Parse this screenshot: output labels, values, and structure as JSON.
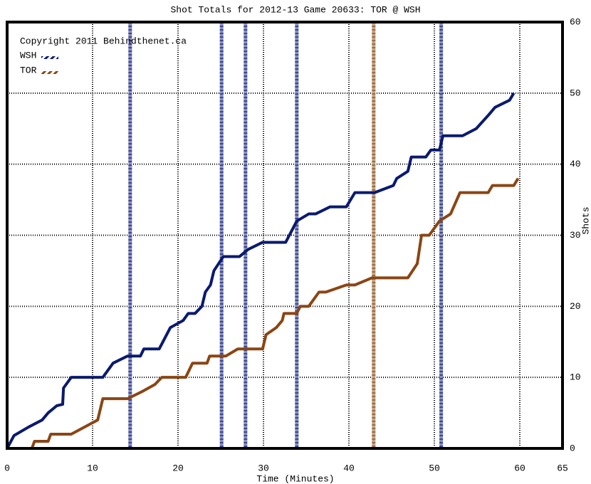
{
  "chart_data": {
    "type": "line",
    "title": "Shot Totals for 2012-13 Game 20633: TOR @ WSH",
    "annotation": "Copyright 2011 Behindthenet.ca",
    "x_label": "Time (Minutes)",
    "y_label": "Shots",
    "xlim": [
      0,
      65
    ],
    "xticks": [
      0,
      10,
      20,
      30,
      40,
      50,
      60,
      65
    ],
    "ylim": [
      0,
      60
    ],
    "yticks": [
      0,
      10,
      20,
      30,
      40,
      50,
      60
    ],
    "grid": true,
    "series": [
      {
        "name": "WSH",
        "color": "#0a1a6e",
        "goal_color": "#8a90c0",
        "x": [
          0,
          0.8,
          2.5,
          4.1,
          4.8,
          5.8,
          6.5,
          6.6,
          7.5,
          11.2,
          12.4,
          14.1,
          15.6,
          16,
          17.8,
          19.1,
          20.6,
          21.2,
          22,
          22.8,
          23.2,
          23.8,
          24.2,
          25.3,
          27.2,
          28.2,
          29.9,
          32.6,
          33.9,
          35.3,
          36.1,
          37.8,
          39.7,
          40.7,
          43,
          45.2,
          45.6,
          46.9,
          47.3,
          49,
          49.6,
          50.6,
          51,
          53.3,
          54.9,
          56.4,
          57.1,
          58.8,
          59.3
        ],
        "values": [
          0,
          1.8,
          3,
          4,
          5,
          6,
          6.2,
          8.5,
          10,
          10,
          12,
          13,
          13,
          14,
          14,
          17,
          18,
          19,
          19,
          20,
          22,
          23,
          25,
          27,
          27,
          28,
          29,
          29,
          32,
          33,
          33,
          34,
          34,
          36,
          36,
          37,
          38,
          39,
          41,
          41,
          42,
          42,
          44,
          44,
          45,
          47,
          48,
          49,
          50
        ],
        "goals": [
          14.4,
          25.1,
          27.9,
          33.9,
          50.8
        ]
      },
      {
        "name": "TOR",
        "color": "#8b4513",
        "goal_color": "#c0a888",
        "x": [
          0,
          2.9,
          3.2,
          4.8,
          5.1,
          7.5,
          10.6,
          11.2,
          14.1,
          15.8,
          17.3,
          18.1,
          20.9,
          21.7,
          23.4,
          23.7,
          25.6,
          27,
          29.9,
          30.3,
          31.5,
          32.2,
          32.4,
          33.9,
          34.3,
          35.3,
          36.5,
          37.3,
          39.7,
          40.7,
          42.7,
          46.9,
          48,
          48.5,
          49.4,
          50.6,
          51.9,
          53,
          56.3,
          56.8,
          59.3,
          59.8
        ],
        "values": [
          0,
          0,
          1,
          1,
          2,
          2,
          4,
          7,
          7,
          8,
          9,
          10,
          10,
          12,
          12,
          13,
          13,
          14,
          14,
          16,
          17,
          18,
          19,
          19,
          20,
          20,
          22,
          22,
          23,
          23,
          24,
          24,
          26,
          30,
          30,
          32,
          33,
          36,
          36,
          37,
          37,
          38
        ],
        "goals": [
          42.9
        ]
      }
    ]
  }
}
